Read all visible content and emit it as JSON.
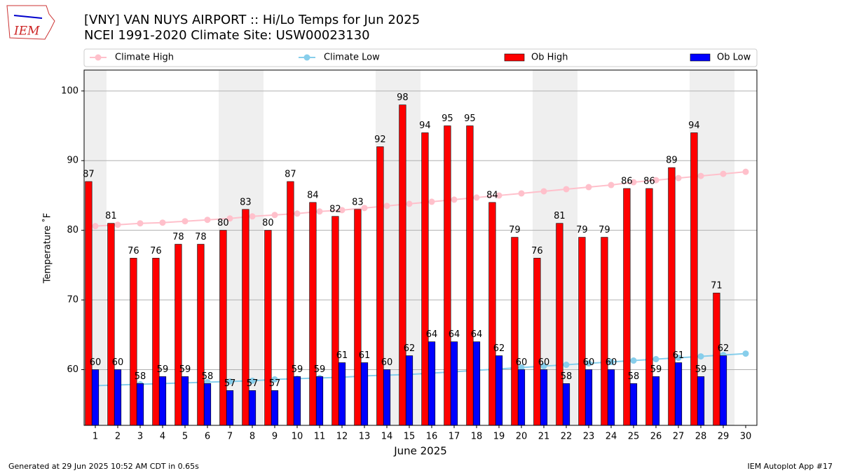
{
  "chart_data": {
    "type": "bar",
    "title": "[VNY] VAN NUYS AIRPORT :: Hi/Lo Temps for Jun 2025",
    "subtitle": "NCEI 1991-2020 Climate Site: USW00023130",
    "logo_text": "IEM",
    "x_label": "June 2025",
    "y_label": "Temperature ˚F",
    "footer_left": "Generated at 29 Jun 2025 10:52 AM CDT in 0.65s",
    "footer_right": "IEM Autoplot App #17",
    "categories": [
      "1",
      "2",
      "3",
      "4",
      "5",
      "6",
      "7",
      "8",
      "9",
      "10",
      "11",
      "12",
      "13",
      "14",
      "15",
      "16",
      "17",
      "18",
      "19",
      "20",
      "21",
      "22",
      "23",
      "24",
      "25",
      "26",
      "27",
      "28",
      "29",
      "30"
    ],
    "ylim": [
      52,
      103
    ],
    "yticks": [
      60,
      70,
      80,
      90,
      100
    ],
    "grid": true,
    "legend": "top",
    "series": [
      {
        "name": "Climate High",
        "type": "line",
        "color": "#ffc0cb",
        "values": [
          80.6,
          80.8,
          81.0,
          81.1,
          81.3,
          81.5,
          81.7,
          82.0,
          82.2,
          82.4,
          82.7,
          82.9,
          83.2,
          83.5,
          83.8,
          84.1,
          84.4,
          84.7,
          85.0,
          85.3,
          85.6,
          85.9,
          86.2,
          86.5,
          86.9,
          87.2,
          87.5,
          87.8,
          88.1,
          88.4
        ]
      },
      {
        "name": "Climate Low",
        "type": "line",
        "color": "#87ceeb",
        "values": [
          57.7,
          57.8,
          57.9,
          58.0,
          58.1,
          58.2,
          58.3,
          58.4,
          58.6,
          58.7,
          58.8,
          58.9,
          59.1,
          59.2,
          59.3,
          59.5,
          59.7,
          59.9,
          60.1,
          60.3,
          60.5,
          60.7,
          60.9,
          61.1,
          61.3,
          61.5,
          61.7,
          61.9,
          62.1,
          62.3
        ]
      },
      {
        "name": "Ob High",
        "type": "bar",
        "color": "#ff0000",
        "values": [
          87,
          81,
          76,
          76,
          78,
          78,
          80,
          83,
          80,
          87,
          84,
          82,
          83,
          92,
          98,
          94,
          95,
          95,
          84,
          79,
          76,
          81,
          79,
          79,
          86,
          86,
          89,
          94,
          71,
          null
        ]
      },
      {
        "name": "Ob Low",
        "type": "bar",
        "color": "#0000ff",
        "values": [
          60,
          60,
          58,
          59,
          59,
          58,
          57,
          57,
          57,
          59,
          59,
          61,
          61,
          60,
          62,
          64,
          64,
          64,
          62,
          60,
          60,
          58,
          60,
          60,
          58,
          59,
          61,
          59,
          62,
          null
        ]
      }
    ]
  }
}
